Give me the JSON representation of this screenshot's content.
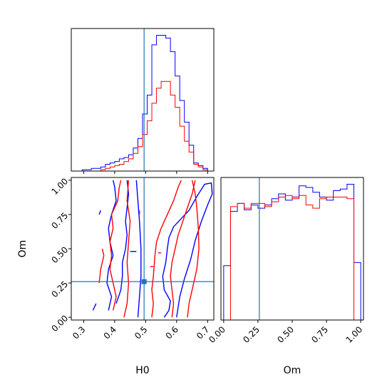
{
  "chart_data": [
    {
      "panel": "H0 marginal",
      "type": "histogram",
      "xlabel": "",
      "xlim": [
        0.26,
        0.72
      ],
      "truth": 0.495,
      "bin_edges": [
        0.265,
        0.28,
        0.295,
        0.31,
        0.325,
        0.34,
        0.355,
        0.37,
        0.385,
        0.4,
        0.415,
        0.43,
        0.445,
        0.46,
        0.475,
        0.49,
        0.505,
        0.52,
        0.535,
        0.55,
        0.565,
        0.58,
        0.595,
        0.61,
        0.625,
        0.64,
        0.655,
        0.67,
        0.685,
        0.7,
        0.715
      ],
      "series": [
        {
          "color": "#0000ff",
          "values": [
            0,
            0,
            1,
            1,
            2,
            2,
            3,
            5,
            6,
            7,
            9,
            10,
            12,
            17,
            24,
            42,
            56,
            93,
            100,
            100,
            98,
            88,
            70,
            52,
            36,
            19,
            6,
            4,
            2,
            0
          ]
        },
        {
          "color": "#ff0000",
          "values": [
            0,
            0,
            0,
            0,
            0,
            0,
            1,
            2,
            3,
            4,
            5,
            7,
            9,
            13,
            18,
            27,
            37,
            50,
            61,
            66,
            66,
            56,
            47,
            33,
            22,
            14,
            5,
            3,
            1,
            0
          ]
        }
      ]
    },
    {
      "panel": "Om marginal",
      "type": "histogram",
      "xlabel": "Om",
      "xlim": [
        -0.02,
        1.02
      ],
      "xticks": [
        "0.00",
        "0.25",
        "0.50",
        "0.75",
        "1.00"
      ],
      "truth": 0.26,
      "bin_edges": [
        0.0,
        0.05,
        0.1,
        0.15,
        0.2,
        0.25,
        0.3,
        0.35,
        0.4,
        0.45,
        0.5,
        0.55,
        0.6,
        0.65,
        0.7,
        0.75,
        0.8,
        0.85,
        0.9,
        0.95,
        1.0
      ],
      "series": [
        {
          "color": "#0000ff",
          "values": [
            34,
            68,
            73,
            69,
            72,
            70,
            72,
            76,
            79,
            75,
            77,
            84,
            83,
            80,
            77,
            75,
            81,
            82,
            85,
            36
          ]
        },
        {
          "color": "#ff0000",
          "values": [
            0,
            71,
            73,
            70,
            73,
            73,
            71,
            74,
            77,
            78,
            76,
            78,
            72,
            70,
            76,
            77,
            77,
            77,
            76,
            0
          ]
        }
      ]
    },
    {
      "panel": "H0 vs Om",
      "type": "contour",
      "xlabel": "H0",
      "ylabel": "Om",
      "xlim": [
        0.26,
        0.72
      ],
      "ylim": [
        -0.02,
        1.02
      ],
      "xticks": [
        "0.3",
        "0.4",
        "0.5",
        "0.6",
        "0.7"
      ],
      "yticks": [
        "0.00",
        "0.25",
        "0.50",
        "0.75",
        "1.00"
      ],
      "truth": {
        "x": 0.495,
        "y": 0.26
      },
      "series": [
        {
          "color": "#0000ff",
          "contours": [
            [
              [
                0.56,
                0.0
              ],
              [
                0.575,
                0.05
              ],
              [
                0.58,
                0.12
              ],
              [
                0.56,
                0.2
              ],
              [
                0.555,
                0.3
              ],
              [
                0.565,
                0.4
              ],
              [
                0.57,
                0.5
              ],
              [
                0.575,
                0.58
              ],
              [
                0.59,
                0.66
              ],
              [
                0.615,
                0.72
              ],
              [
                0.64,
                0.78
              ],
              [
                0.665,
                0.88
              ],
              [
                0.69,
                0.97
              ],
              [
                0.712,
                0.98
              ],
              [
                0.715,
                0.9
              ],
              [
                0.7,
                0.82
              ],
              [
                0.68,
                0.7
              ],
              [
                0.66,
                0.56
              ],
              [
                0.645,
                0.42
              ],
              [
                0.625,
                0.28
              ],
              [
                0.61,
                0.15
              ],
              [
                0.6,
                0.0
              ]
            ],
            [
              [
                0.475,
                0.0
              ],
              [
                0.48,
                0.15
              ],
              [
                0.485,
                0.3
              ],
              [
                0.485,
                0.5
              ],
              [
                0.48,
                0.7
              ],
              [
                0.475,
                0.85
              ],
              [
                0.47,
                1.0
              ]
            ],
            [
              [
                0.405,
                0.1
              ],
              [
                0.42,
                0.2
              ],
              [
                0.425,
                0.3
              ],
              [
                0.425,
                0.4
              ],
              [
                0.435,
                0.5
              ],
              [
                0.44,
                0.6
              ],
              [
                0.435,
                0.7
              ],
              [
                0.44,
                0.8
              ],
              [
                0.445,
                0.9
              ],
              [
                0.44,
                1.0
              ]
            ],
            [
              [
                0.38,
                0.05
              ],
              [
                0.39,
                0.15
              ],
              [
                0.375,
                0.25
              ],
              [
                0.38,
                0.35
              ],
              [
                0.395,
                0.45
              ],
              [
                0.385,
                0.55
              ],
              [
                0.38,
                0.65
              ],
              [
                0.39,
                0.75
              ],
              [
                0.405,
                0.85
              ],
              [
                0.4,
                0.95
              ],
              [
                0.395,
                1.0
              ]
            ],
            [
              [
                0.33,
                0.05
              ],
              [
                0.34,
                0.1
              ]
            ],
            [
              [
                0.35,
                0.75
              ],
              [
                0.355,
                0.78
              ]
            ],
            [
              [
                0.45,
                0.48
              ],
              [
                0.47,
                0.48
              ]
            ]
          ]
        },
        {
          "color": "#ff0000",
          "contours": [
            [
              [
                0.585,
                0.0
              ],
              [
                0.59,
                0.1
              ],
              [
                0.585,
                0.2
              ],
              [
                0.58,
                0.3
              ],
              [
                0.585,
                0.4
              ],
              [
                0.595,
                0.5
              ],
              [
                0.605,
                0.6
              ],
              [
                0.62,
                0.7
              ],
              [
                0.635,
                0.8
              ],
              [
                0.65,
                0.9
              ],
              [
                0.66,
                1.0
              ]
            ],
            [
              [
                0.65,
                1.0
              ],
              [
                0.66,
                0.9
              ],
              [
                0.665,
                0.8
              ],
              [
                0.67,
                0.65
              ],
              [
                0.672,
                0.5
              ],
              [
                0.665,
                0.35
              ],
              [
                0.65,
                0.2
              ],
              [
                0.64,
                0.1
              ],
              [
                0.635,
                0.0
              ]
            ],
            [
              [
                0.52,
                0.0
              ],
              [
                0.525,
                0.1
              ],
              [
                0.52,
                0.2
              ],
              [
                0.525,
                0.3
              ],
              [
                0.53,
                0.45
              ],
              [
                0.535,
                0.55
              ],
              [
                0.55,
                0.65
              ],
              [
                0.57,
                0.75
              ],
              [
                0.59,
                0.85
              ],
              [
                0.605,
                0.95
              ],
              [
                0.615,
                1.0
              ]
            ],
            [
              [
                0.43,
                0.0
              ],
              [
                0.44,
                0.1
              ],
              [
                0.445,
                0.25
              ],
              [
                0.44,
                0.4
              ],
              [
                0.445,
                0.55
              ],
              [
                0.45,
                0.7
              ],
              [
                0.44,
                0.85
              ],
              [
                0.445,
                1.0
              ]
            ],
            [
              [
                0.395,
                0.05
              ],
              [
                0.405,
                0.15
              ],
              [
                0.395,
                0.25
              ],
              [
                0.385,
                0.35
              ],
              [
                0.39,
                0.45
              ],
              [
                0.385,
                0.55
              ],
              [
                0.395,
                0.65
              ],
              [
                0.39,
                0.75
              ],
              [
                0.41,
                0.85
              ],
              [
                0.415,
                0.95
              ],
              [
                0.42,
                1.0
              ]
            ],
            [
              [
                0.35,
                0.25
              ],
              [
                0.355,
                0.35
              ],
              [
                0.365,
                0.45
              ],
              [
                0.36,
                0.5
              ]
            ],
            [
              [
                0.48,
                0.75
              ],
              [
                0.48,
                0.78
              ]
            ],
            [
              [
                0.54,
                0.47
              ],
              [
                0.55,
                0.47
              ]
            ],
            [
              [
                0.515,
                0.37
              ],
              [
                0.525,
                0.37
              ]
            ]
          ]
        }
      ]
    }
  ]
}
